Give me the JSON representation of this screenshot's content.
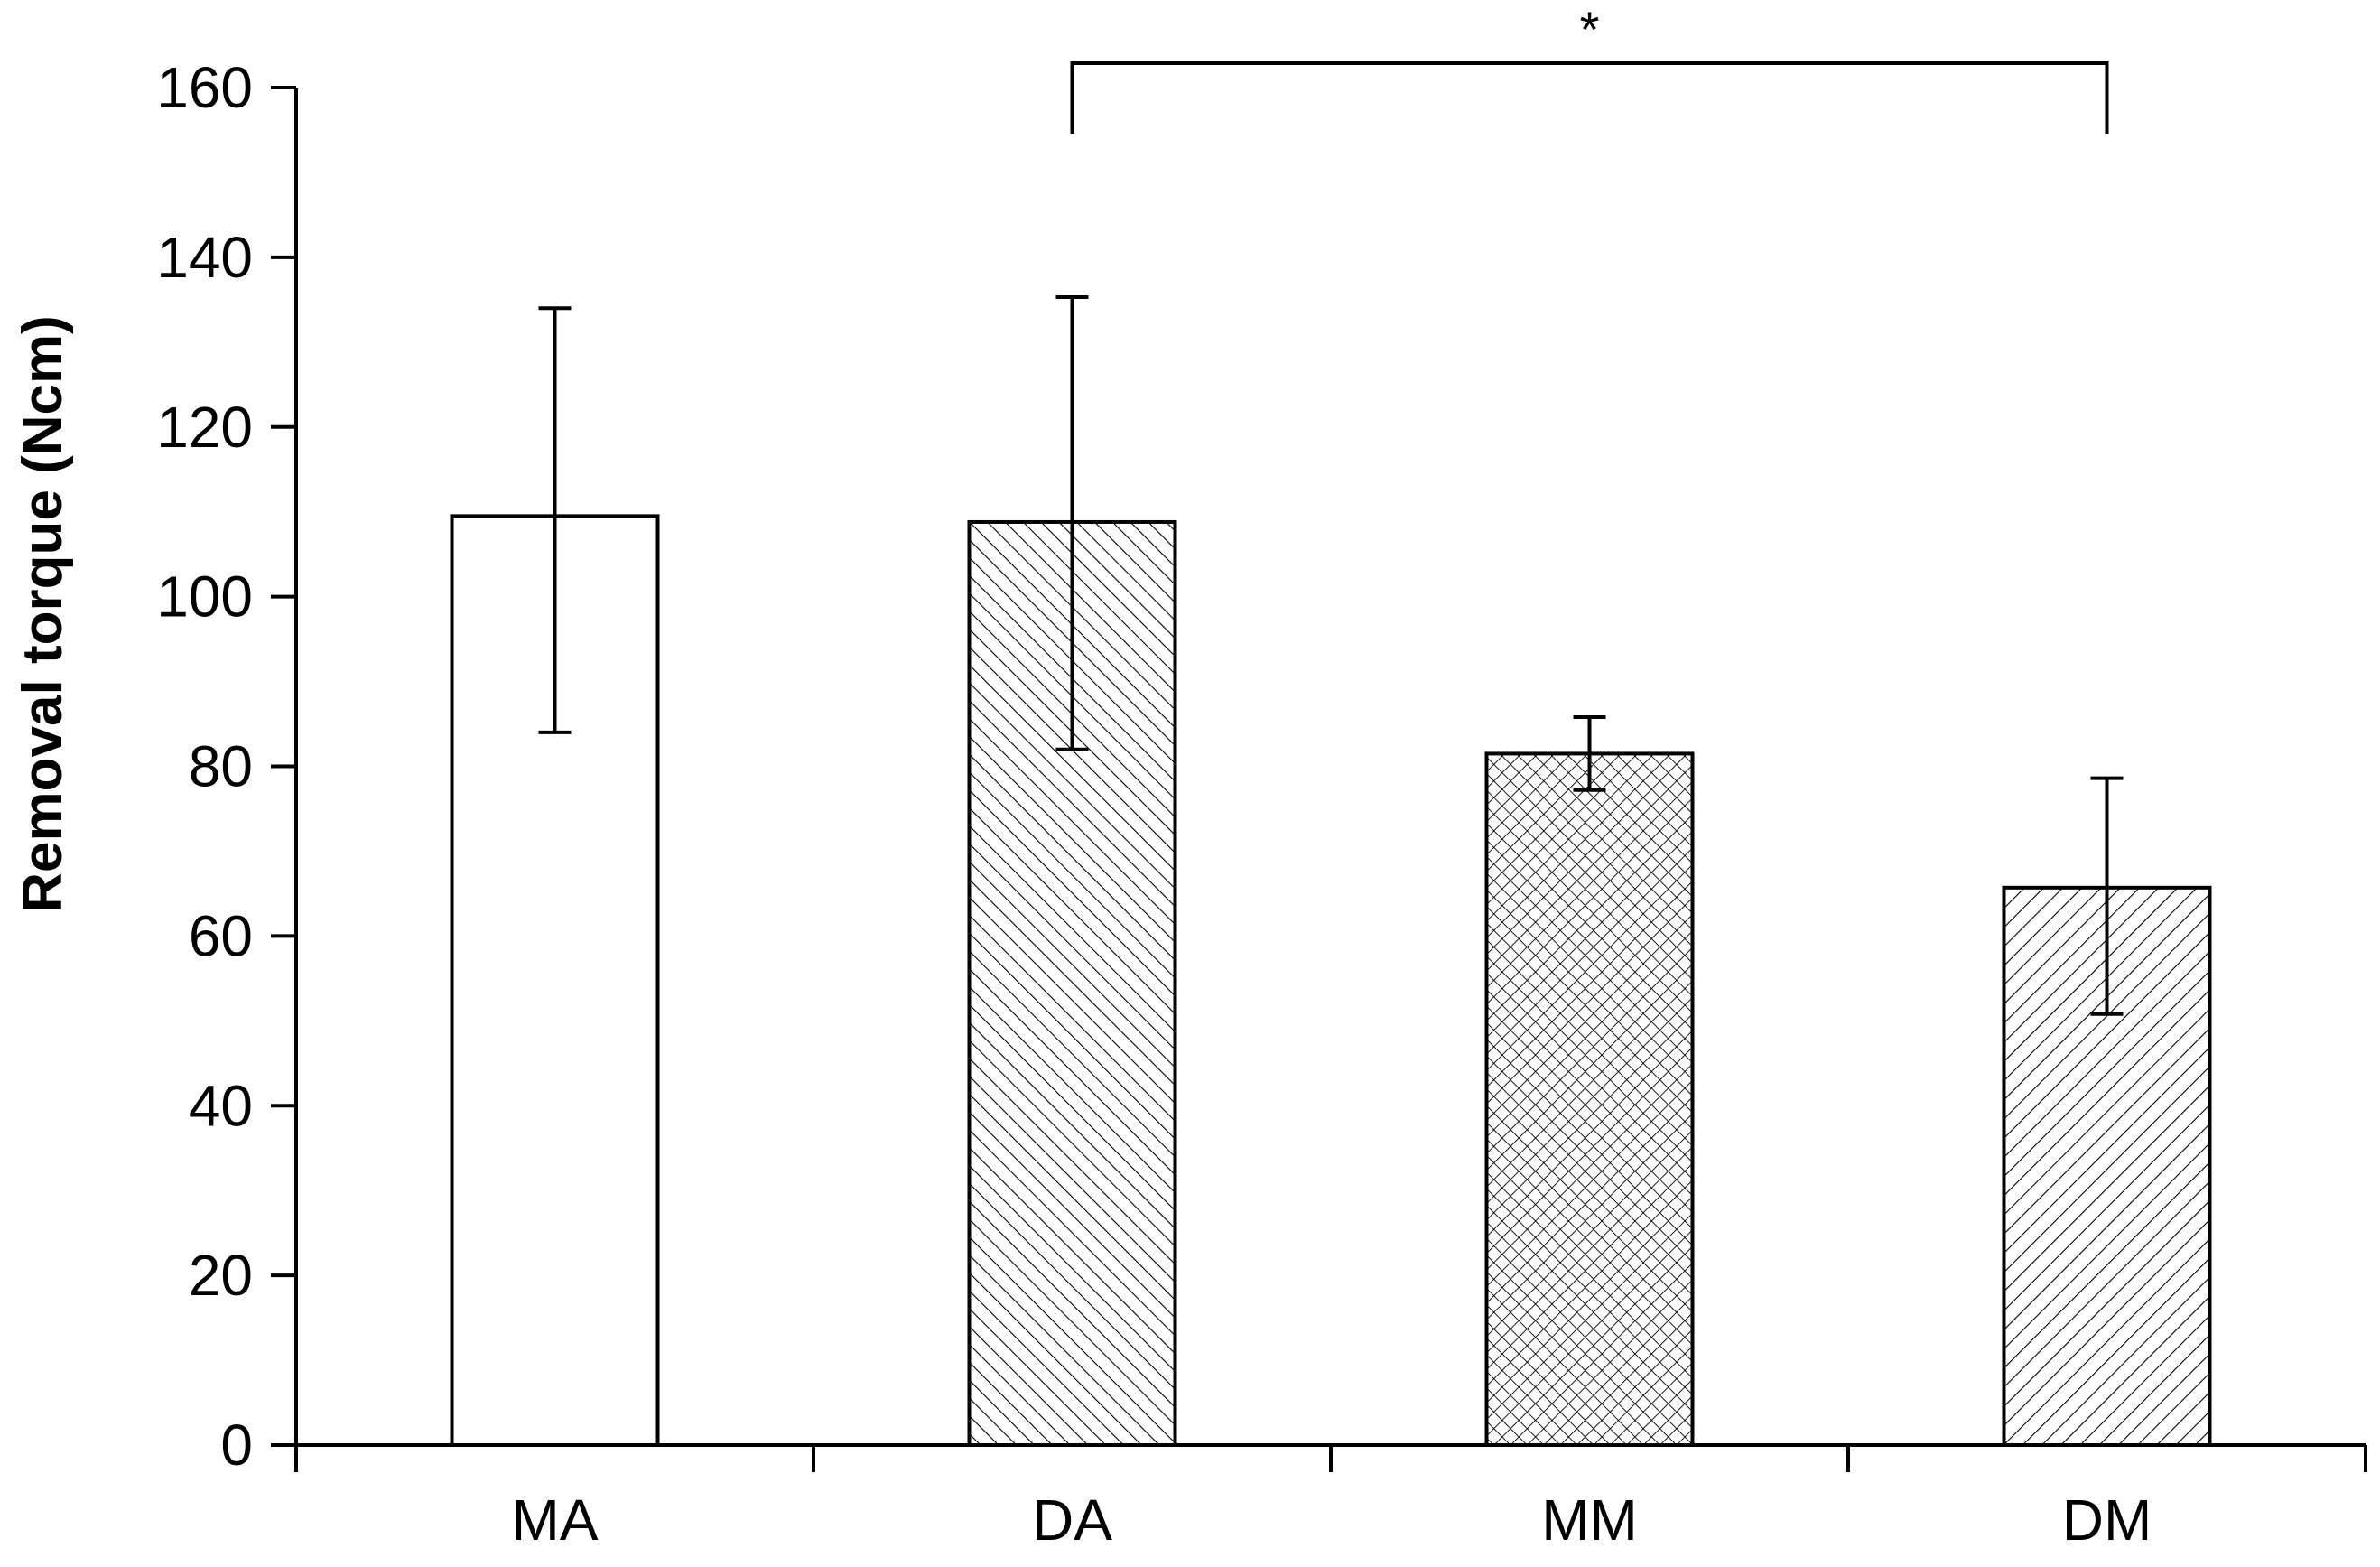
{
  "chart_data": {
    "type": "bar",
    "title": "",
    "xlabel": "",
    "ylabel": "Removal torque (Ncm)",
    "ylim": [
      0,
      160
    ],
    "yticks": [
      0,
      20,
      40,
      60,
      80,
      100,
      120,
      140,
      160
    ],
    "categories": [
      "MA",
      "DA",
      "MM",
      "DM"
    ],
    "values": [
      109.5,
      108.8,
      81.5,
      65.7
    ],
    "error_upper": [
      134,
      135.3,
      85.8,
      78.6
    ],
    "error_lower": [
      84,
      82,
      77.2,
      50.8
    ],
    "fill_patterns": [
      "none",
      "diagonal-backslash",
      "crosshatch",
      "diagonal-slash"
    ],
    "significance": {
      "from": "DA",
      "to": "DM",
      "label": "*"
    },
    "grid": false,
    "legend": "none",
    "colors": {
      "bar_stroke": "#000000",
      "bar_fill": "#ffffff",
      "axis": "#000000"
    }
  }
}
